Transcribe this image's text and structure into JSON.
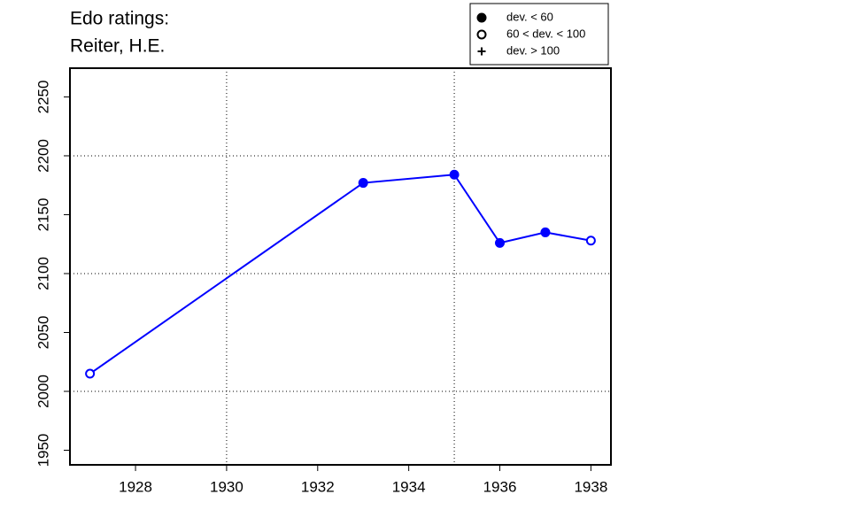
{
  "chart_data": {
    "type": "line",
    "title": [
      "Edo ratings:",
      "Reiter, H.E."
    ],
    "x": [
      1927,
      1933,
      1935,
      1936,
      1937,
      1938
    ],
    "series": [
      {
        "name": "Reiter, H.E.",
        "color": "#0000ff",
        "values": [
          2015,
          2177,
          2184,
          2126,
          2135,
          2128
        ],
        "markers": [
          "open",
          "filled",
          "filled",
          "filled",
          "filled",
          "open"
        ]
      }
    ],
    "xlim": [
      1926.56,
      1938.44
    ],
    "xticks": [
      1928,
      1930,
      1932,
      1934,
      1936,
      1938
    ],
    "ylim": [
      1937.6,
      2274.4
    ],
    "yticks": [
      1950,
      2000,
      2050,
      2100,
      2150,
      2200,
      2250
    ],
    "xgrid": [
      1930,
      1935
    ],
    "ygrid": [
      2000,
      2100,
      2200
    ],
    "legend": {
      "position": "top-right",
      "entries": [
        {
          "label": "dev. < 60",
          "marker": "filled"
        },
        {
          "label": "60 < dev. < 100",
          "marker": "open"
        },
        {
          "label": "dev. > 100",
          "marker": "plus"
        }
      ]
    }
  }
}
